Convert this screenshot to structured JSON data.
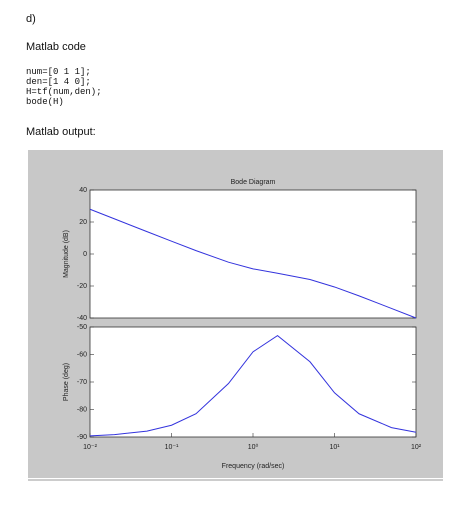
{
  "document": {
    "label": "d)",
    "code_heading": "Matlab code",
    "code": [
      "num=[0 1 1];",
      "den=[1 4 0];",
      "H=tf(num,den);",
      "bode(H)"
    ],
    "output_heading": "Matlab output:"
  },
  "chart_data": [
    {
      "type": "line",
      "title": "Bode Diagram",
      "ylabel": "Magnitude (dB)",
      "color": "#3333dd",
      "log_x": true,
      "x": [
        0.01,
        0.02,
        0.05,
        0.1,
        0.2,
        0.5,
        1,
        2,
        5,
        10,
        20,
        50,
        100
      ],
      "values": [
        27.96,
        21.94,
        13.99,
        8.0,
        2.1,
        -5.12,
        -9.29,
        -12.04,
        -15.96,
        -20.6,
        -26.18,
        -34.01,
        -40.0
      ],
      "xlim": [
        0.01,
        100
      ],
      "ylim": [
        -40,
        40
      ],
      "yticks": [
        -40,
        -20,
        0,
        20,
        40
      ]
    },
    {
      "type": "line",
      "ylabel": "Phase (deg)",
      "xlabel": "Frequency  (rad/sec)",
      "color": "#3333dd",
      "log_x": true,
      "x": [
        0.01,
        0.02,
        0.05,
        0.1,
        0.2,
        0.5,
        1,
        2,
        5,
        10,
        20,
        50,
        100
      ],
      "values": [
        -89.57,
        -89.14,
        -87.85,
        -85.72,
        -81.55,
        -70.56,
        -59.04,
        -53.13,
        -62.65,
        -73.91,
        -81.55,
        -86.58,
        -88.28
      ],
      "xlim": [
        0.01,
        100
      ],
      "ylim": [
        -90,
        -50
      ],
      "yticks": [
        -90,
        -80,
        -70,
        -60,
        -50
      ],
      "xticks": [
        {
          "value": 0.01,
          "label": "10⁻²"
        },
        {
          "value": 0.1,
          "label": "10⁻¹"
        },
        {
          "value": 1,
          "label": "10⁰"
        },
        {
          "value": 10,
          "label": "10¹"
        },
        {
          "value": 100,
          "label": "10²"
        }
      ]
    }
  ]
}
